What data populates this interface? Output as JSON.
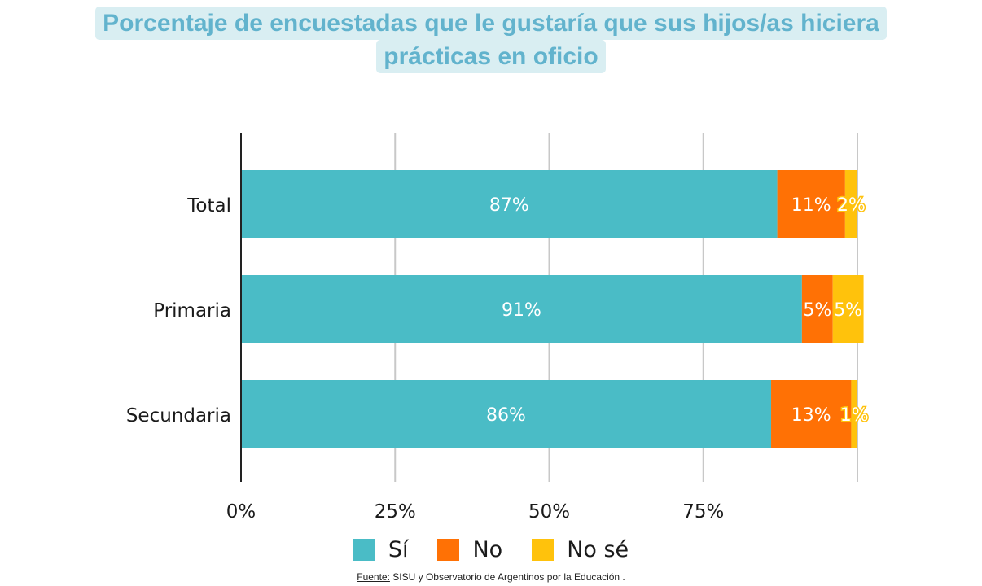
{
  "title": {
    "line1": "Porcentaje de encuestadas que le gustaría que sus hijos/as hiciera",
    "line2": "prácticas en oficio"
  },
  "chart_data": {
    "type": "bar",
    "orientation": "horizontal",
    "stacked": true,
    "categories": [
      "Total",
      "Primaria",
      "Secundaria"
    ],
    "series": [
      {
        "name": "Sí",
        "values": [
          87,
          91,
          86
        ],
        "labels": [
          "87%",
          "91%",
          "86%"
        ],
        "color": "#4abcc6"
      },
      {
        "name": "No",
        "values": [
          11,
          5,
          13
        ],
        "labels": [
          "11%",
          "5%",
          "13%"
        ],
        "color": "#ff7105"
      },
      {
        "name": "No sé",
        "values": [
          2,
          5,
          1
        ],
        "labels": [
          "2%",
          "5%",
          "1%"
        ],
        "color": "#ffc20c"
      }
    ],
    "x_ticks": [
      0,
      25,
      50,
      75,
      100
    ],
    "x_tick_labels": [
      "0%",
      "25%",
      "50%",
      "75%",
      ""
    ],
    "xlim": [
      0,
      100
    ],
    "grid": true,
    "legend_position": "bottom"
  },
  "colors": {
    "gridline": "#c8c8c8",
    "axis": "#222222",
    "label_text": "#ffffff",
    "text": "#1a1a1a"
  },
  "source": {
    "label": "Fuente:",
    "text": " SISU y Observatorio de Argentinos por la Educación ."
  }
}
